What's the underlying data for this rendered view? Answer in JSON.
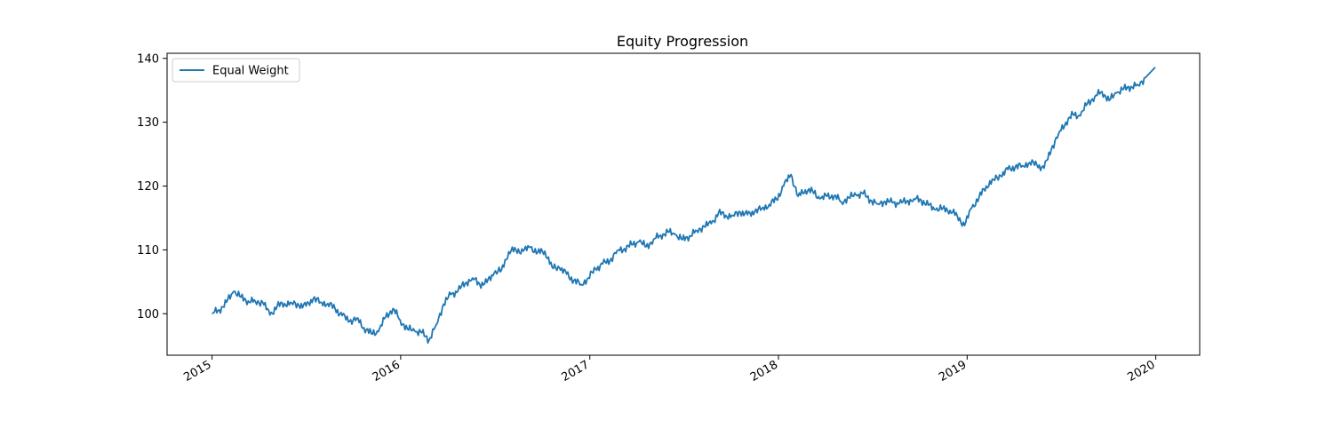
{
  "chart_data": {
    "type": "line",
    "title": "Equity Progression",
    "xlabel": "",
    "ylabel": "",
    "xlim": [
      "2014-10-06",
      "2020-03-26"
    ],
    "ylim": [
      93.5,
      140.8
    ],
    "x_ticks": [
      "2015",
      "2016",
      "2017",
      "2018",
      "2019",
      "2020"
    ],
    "y_ticks": [
      100,
      110,
      120,
      130,
      140
    ],
    "grid": false,
    "legend_position": "upper-left",
    "series": [
      {
        "name": "Equal Weight",
        "color": "#1f77b4",
        "points": [
          [
            "2015-01-01",
            100.0
          ],
          [
            "2015-01-15",
            100.6
          ],
          [
            "2015-01-29",
            101.8
          ],
          [
            "2015-02-12",
            103.5
          ],
          [
            "2015-02-26",
            102.6
          ],
          [
            "2015-03-12",
            102.0
          ],
          [
            "2015-03-26",
            101.9
          ],
          [
            "2015-04-09",
            101.8
          ],
          [
            "2015-04-23",
            99.8
          ],
          [
            "2015-05-07",
            101.2
          ],
          [
            "2015-05-21",
            101.6
          ],
          [
            "2015-06-04",
            101.7
          ],
          [
            "2015-06-18",
            101.3
          ],
          [
            "2015-07-02",
            101.2
          ],
          [
            "2015-07-16",
            102.4
          ],
          [
            "2015-07-30",
            101.8
          ],
          [
            "2015-08-13",
            101.6
          ],
          [
            "2015-08-27",
            100.8
          ],
          [
            "2015-09-10",
            99.7
          ],
          [
            "2015-09-24",
            98.8
          ],
          [
            "2015-10-08",
            99.3
          ],
          [
            "2015-10-22",
            97.8
          ],
          [
            "2015-11-05",
            96.9
          ],
          [
            "2015-11-19",
            97.2
          ],
          [
            "2015-12-03",
            99.5
          ],
          [
            "2015-12-17",
            100.8
          ],
          [
            "2015-12-31",
            99.0
          ],
          [
            "2016-01-14",
            97.6
          ],
          [
            "2016-01-28",
            97.3
          ],
          [
            "2016-02-11",
            97.0
          ],
          [
            "2016-02-25",
            95.9
          ],
          [
            "2016-03-10",
            98.3
          ],
          [
            "2016-03-24",
            101.5
          ],
          [
            "2016-04-07",
            103.0
          ],
          [
            "2016-04-21",
            103.6
          ],
          [
            "2016-05-05",
            104.8
          ],
          [
            "2016-05-19",
            105.6
          ],
          [
            "2016-06-02",
            104.6
          ],
          [
            "2016-06-16",
            104.9
          ],
          [
            "2016-06-30",
            106.4
          ],
          [
            "2016-07-14",
            106.8
          ],
          [
            "2016-07-28",
            109.7
          ],
          [
            "2016-08-11",
            110.0
          ],
          [
            "2016-08-25",
            109.8
          ],
          [
            "2016-09-08",
            110.4
          ],
          [
            "2016-09-22",
            109.6
          ],
          [
            "2016-10-06",
            109.8
          ],
          [
            "2016-10-20",
            107.3
          ],
          [
            "2016-11-03",
            107.2
          ],
          [
            "2016-11-17",
            106.2
          ],
          [
            "2016-12-01",
            105.2
          ],
          [
            "2016-12-15",
            104.6
          ],
          [
            "2016-12-29",
            105.6
          ],
          [
            "2017-01-12",
            107.0
          ],
          [
            "2017-01-26",
            107.8
          ],
          [
            "2017-02-09",
            108.3
          ],
          [
            "2017-02-23",
            109.9
          ],
          [
            "2017-03-09",
            110.2
          ],
          [
            "2017-03-23",
            110.8
          ],
          [
            "2017-04-06",
            111.3
          ],
          [
            "2017-04-20",
            110.5
          ],
          [
            "2017-05-04",
            111.6
          ],
          [
            "2017-05-18",
            112.3
          ],
          [
            "2017-06-01",
            112.8
          ],
          [
            "2017-06-15",
            112.4
          ],
          [
            "2017-06-29",
            111.6
          ],
          [
            "2017-07-13",
            112.2
          ],
          [
            "2017-07-27",
            113.0
          ],
          [
            "2017-08-10",
            113.7
          ],
          [
            "2017-08-24",
            114.1
          ],
          [
            "2017-09-07",
            115.8
          ],
          [
            "2017-09-21",
            115.4
          ],
          [
            "2017-10-05",
            115.4
          ],
          [
            "2017-10-19",
            115.9
          ],
          [
            "2017-11-02",
            115.5
          ],
          [
            "2017-11-16",
            116.0
          ],
          [
            "2017-11-30",
            116.5
          ],
          [
            "2017-12-14",
            117.1
          ],
          [
            "2017-12-28",
            117.9
          ],
          [
            "2018-01-11",
            120.0
          ],
          [
            "2018-01-25",
            121.8
          ],
          [
            "2018-02-08",
            118.4
          ],
          [
            "2018-02-22",
            119.4
          ],
          [
            "2018-03-08",
            119.2
          ],
          [
            "2018-03-22",
            118.0
          ],
          [
            "2018-04-05",
            118.4
          ],
          [
            "2018-04-19",
            118.5
          ],
          [
            "2018-05-03",
            117.5
          ],
          [
            "2018-05-17",
            118.2
          ],
          [
            "2018-05-31",
            118.6
          ],
          [
            "2018-06-14",
            118.8
          ],
          [
            "2018-06-28",
            117.8
          ],
          [
            "2018-07-12",
            117.2
          ],
          [
            "2018-07-26",
            117.6
          ],
          [
            "2018-08-09",
            117.4
          ],
          [
            "2018-08-23",
            117.3
          ],
          [
            "2018-09-06",
            117.6
          ],
          [
            "2018-09-20",
            118.0
          ],
          [
            "2018-10-04",
            117.8
          ],
          [
            "2018-10-18",
            117.0
          ],
          [
            "2018-11-01",
            116.3
          ],
          [
            "2018-11-15",
            116.5
          ],
          [
            "2018-11-29",
            116.2
          ],
          [
            "2018-12-13",
            115.3
          ],
          [
            "2018-12-27",
            113.8
          ],
          [
            "2019-01-10",
            116.6
          ],
          [
            "2019-01-24",
            118.2
          ],
          [
            "2019-02-07",
            120.0
          ],
          [
            "2019-02-21",
            121.0
          ],
          [
            "2019-03-07",
            121.6
          ],
          [
            "2019-03-21",
            122.6
          ],
          [
            "2019-04-04",
            123.0
          ],
          [
            "2019-04-18",
            123.2
          ],
          [
            "2019-05-02",
            123.7
          ],
          [
            "2019-05-16",
            123.3
          ],
          [
            "2019-05-30",
            122.8
          ],
          [
            "2019-06-13",
            125.8
          ],
          [
            "2019-06-27",
            128.2
          ],
          [
            "2019-07-11",
            130.0
          ],
          [
            "2019-07-25",
            131.2
          ],
          [
            "2019-08-08",
            131.0
          ],
          [
            "2019-08-22",
            133.0
          ],
          [
            "2019-09-05",
            134.0
          ],
          [
            "2019-09-19",
            134.8
          ],
          [
            "2019-10-03",
            133.4
          ],
          [
            "2019-10-17",
            134.6
          ],
          [
            "2019-10-31",
            135.2
          ],
          [
            "2019-11-14",
            135.6
          ],
          [
            "2019-11-28",
            135.8
          ],
          [
            "2019-12-12",
            137.0
          ],
          [
            "2019-12-31",
            138.6
          ]
        ]
      }
    ]
  }
}
